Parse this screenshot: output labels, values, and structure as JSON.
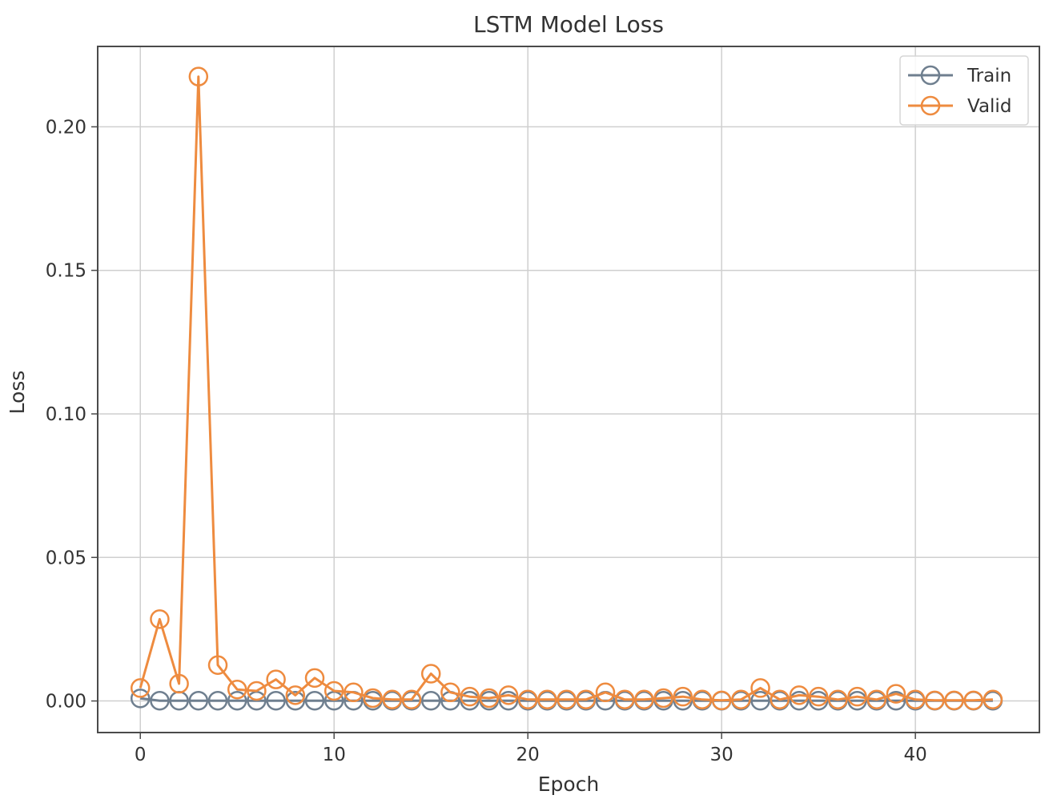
{
  "chart_data": {
    "type": "line",
    "title": "LSTM Model Loss",
    "xlabel": "Epoch",
    "ylabel": "Loss",
    "xlim": [
      -2.2,
      46.4
    ],
    "ylim": [
      -0.011,
      0.228
    ],
    "xticks": [
      0,
      10,
      20,
      30,
      40
    ],
    "xtick_labels": [
      "0",
      "10",
      "20",
      "30",
      "40"
    ],
    "yticks": [
      0.0,
      0.05,
      0.1,
      0.15,
      0.2
    ],
    "ytick_labels": [
      "0.00",
      "0.05",
      "0.10",
      "0.15",
      "0.20"
    ],
    "grid": true,
    "legend_position": "upper right",
    "marker": "open-circle",
    "x": [
      0,
      1,
      2,
      3,
      4,
      5,
      6,
      7,
      8,
      9,
      10,
      11,
      12,
      13,
      14,
      15,
      16,
      17,
      18,
      19,
      20,
      21,
      22,
      23,
      24,
      25,
      26,
      27,
      28,
      29,
      30,
      31,
      32,
      33,
      34,
      35,
      36,
      37,
      38,
      39,
      40,
      41,
      42,
      43,
      44
    ],
    "series": [
      {
        "name": "Train",
        "color": "#6f7f8f",
        "values": [
          0.0009,
          0.0001,
          0.0001,
          0.0001,
          0.0001,
          0.0001,
          0.0001,
          0.0001,
          0.0001,
          0.0001,
          0.0001,
          0.0001,
          0.0001,
          0.0001,
          0.0001,
          0.0001,
          0.0001,
          0.0001,
          0.0001,
          0.0001,
          0.0001,
          0.0001,
          0.0001,
          0.0001,
          0.0001,
          0.0001,
          0.0001,
          0.0001,
          0.0001,
          0.0001,
          0.0001,
          0.0001,
          0.0001,
          0.0001,
          0.0001,
          0.0001,
          0.0001,
          0.0001,
          0.0001,
          0.0001,
          0.0001,
          0.0001,
          0.0001,
          0.0001,
          0.0001
        ]
      },
      {
        "name": "Valid",
        "color": "#ee8b3f",
        "values": [
          0.0045,
          0.0285,
          0.006,
          0.2175,
          0.0125,
          0.004,
          0.0035,
          0.0075,
          0.002,
          0.008,
          0.0035,
          0.003,
          0.001,
          0.0005,
          0.0005,
          0.0095,
          0.003,
          0.0015,
          0.001,
          0.002,
          0.0005,
          0.0005,
          0.0005,
          0.0005,
          0.003,
          0.0005,
          0.0005,
          0.001,
          0.0015,
          0.0005,
          0.0002,
          0.0005,
          0.0045,
          0.0005,
          0.002,
          0.0015,
          0.0005,
          0.0015,
          0.0005,
          0.0025,
          0.0005,
          0.0002,
          0.0002,
          0.0002,
          0.0005
        ]
      }
    ]
  }
}
